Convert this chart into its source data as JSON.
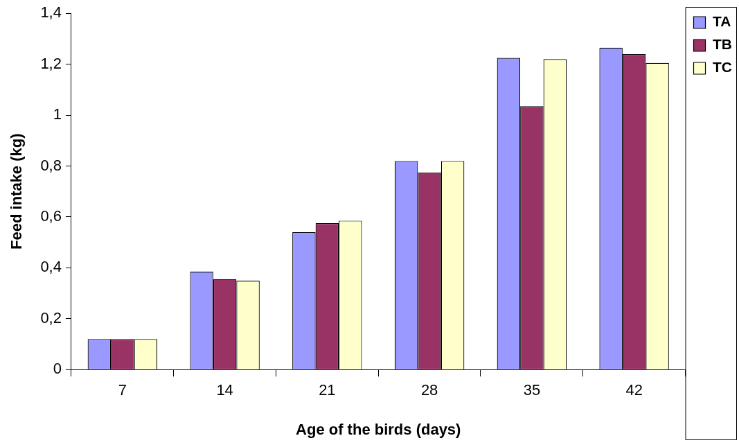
{
  "chart_data": {
    "type": "bar",
    "xlabel": "Age of the birds (days)",
    "ylabel": "Feed intake (kg)",
    "categories": [
      "7",
      "14",
      "21",
      "28",
      "35",
      "42"
    ],
    "series": [
      {
        "name": "TA",
        "color": "#9999ff",
        "values": [
          0.12,
          0.385,
          0.54,
          0.82,
          1.225,
          1.265
        ]
      },
      {
        "name": "TB",
        "color": "#993366",
        "values": [
          0.12,
          0.355,
          0.575,
          0.775,
          1.035,
          1.24
        ]
      },
      {
        "name": "TC",
        "color": "#ffffcc",
        "values": [
          0.12,
          0.35,
          0.585,
          0.82,
          1.22,
          1.205
        ]
      }
    ],
    "ylim": [
      0,
      1.4
    ],
    "yticks": [
      0,
      {
        "value": 0.2,
        "label": "0,2"
      },
      {
        "value": 0.4,
        "label": "0,4"
      },
      {
        "value": 0.6,
        "label": "0,6"
      },
      {
        "value": 0.8,
        "label": "0,8"
      },
      1,
      {
        "value": 1.2,
        "label": "1,2"
      },
      {
        "value": 1.4,
        "label": "1,4"
      }
    ],
    "grid": false,
    "legend": "top right"
  }
}
